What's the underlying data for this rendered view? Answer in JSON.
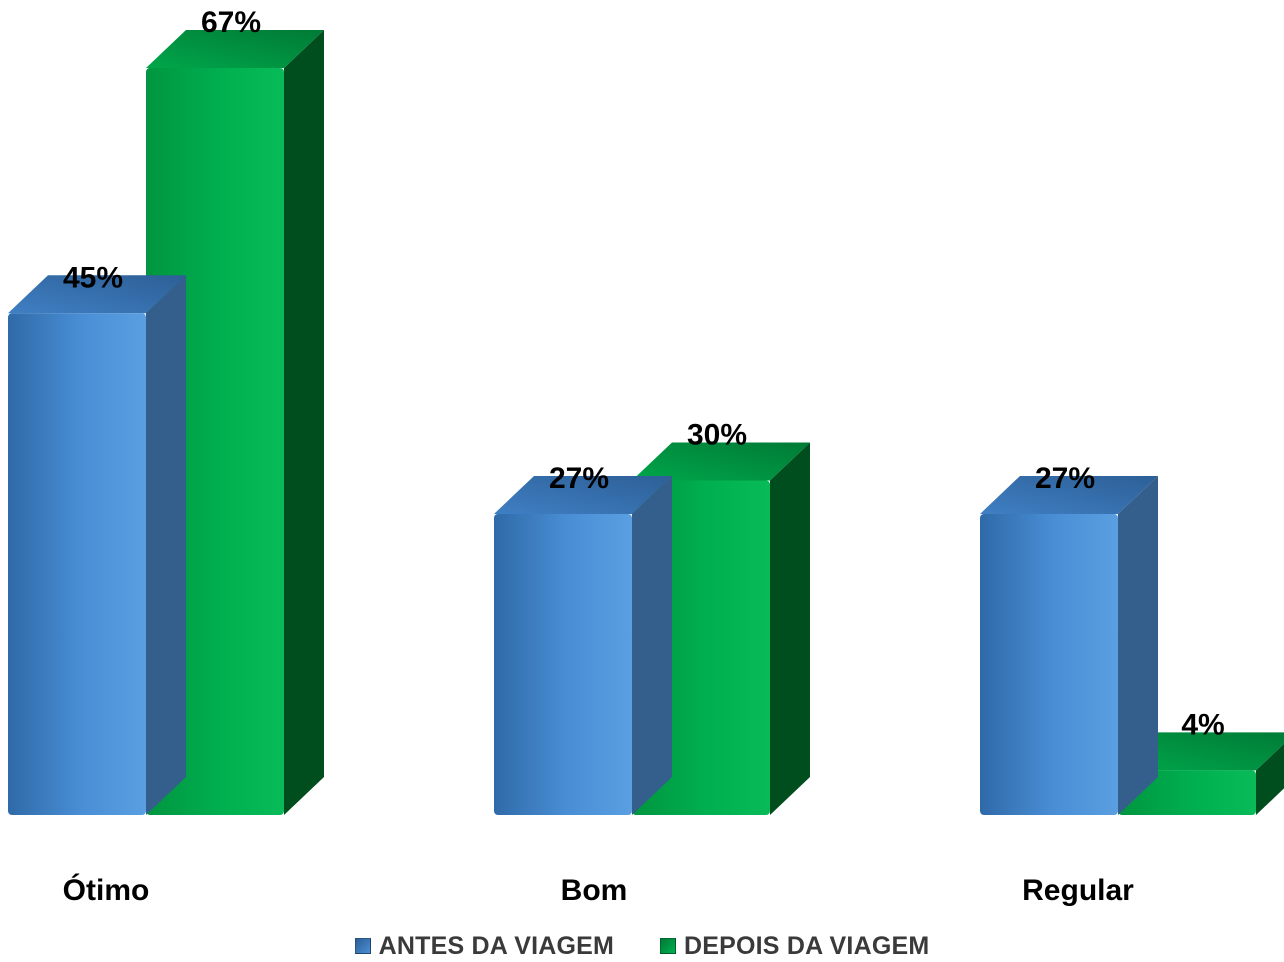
{
  "chart_data": {
    "type": "bar",
    "categories": [
      "Ótimo",
      "Bom",
      "Regular"
    ],
    "series": [
      {
        "name": "ANTES DA VIAGEM",
        "values": [
          45,
          27,
          27
        ],
        "labels": [
          "45%",
          "27%",
          "27%"
        ],
        "color": "#4A8FD6"
      },
      {
        "name": "DEPOIS DA VIAGEM",
        "values": [
          67,
          30,
          4
        ],
        "labels": [
          "67%",
          "30%",
          "4%"
        ],
        "color": "#00B050"
      }
    ],
    "unit": "%",
    "ylim": [
      0,
      70
    ],
    "legend_position": "bottom",
    "grid": false,
    "style": "3d-column"
  }
}
